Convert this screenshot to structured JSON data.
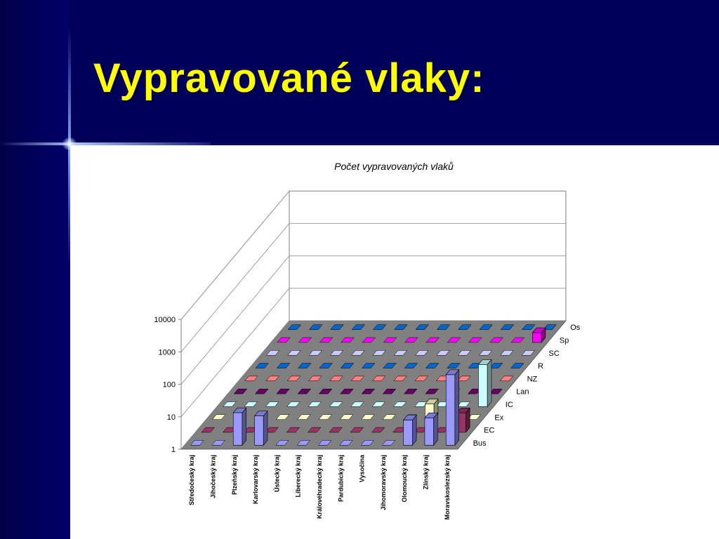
{
  "slide": {
    "title": "Vypravované vlaky:"
  },
  "colors": {
    "background": "#00005a",
    "title": "#ffff00",
    "panel": "#ffffff",
    "floor": "#808080"
  },
  "chart_data": {
    "type": "bar",
    "subtype": "3d-bar-matrix",
    "title": "Počet vypravovaných vlaků",
    "y_scale": "log",
    "ylim": [
      1,
      10000
    ],
    "y_ticks": [
      "1",
      "10",
      "100",
      "1000",
      "10000"
    ],
    "categories": [
      "Středočeský kraj",
      "Jihočeský kraj",
      "Plzeňský kraj",
      "Karlovarský kraj",
      "Ústecký kraj",
      "Liberecký kraj",
      "Královéhradecký kraj",
      "Pardubický kraj",
      "Vysočina",
      "Jihomoravský kraj",
      "Olomoucký kraj",
      "Zlínský kraj",
      "Moravskoslezský kraj"
    ],
    "series": [
      {
        "name": "Bus",
        "color": "#9999ff",
        "values": [
          1,
          1,
          10,
          8,
          1,
          1,
          1,
          1,
          1,
          1,
          6,
          7,
          150
        ]
      },
      {
        "name": "EC",
        "color": "#993366",
        "values": [
          1,
          1,
          1,
          1,
          1,
          1,
          1,
          1,
          1,
          1,
          1,
          1,
          4
        ]
      },
      {
        "name": "Ex",
        "color": "#ffffcc",
        "values": [
          1,
          1,
          1,
          1,
          1,
          1,
          1,
          1,
          1,
          1,
          3,
          1,
          1
        ]
      },
      {
        "name": "IC",
        "color": "#ccffff",
        "values": [
          1,
          1,
          1,
          1,
          1,
          1,
          1,
          1,
          1,
          1,
          1,
          1,
          20
        ]
      },
      {
        "name": "Lan",
        "color": "#660066",
        "values": [
          1,
          1,
          1,
          1,
          1,
          1,
          1,
          1,
          1,
          1,
          1,
          1,
          1
        ]
      },
      {
        "name": "NZ",
        "color": "#ff8080",
        "values": [
          1,
          1,
          1,
          1,
          1,
          1,
          1,
          1,
          1,
          1,
          1,
          1,
          1
        ]
      },
      {
        "name": "R",
        "color": "#0066cc",
        "values": [
          1,
          1,
          1,
          1,
          1,
          1,
          1,
          1,
          1,
          1,
          1,
          1,
          1
        ]
      },
      {
        "name": "SC",
        "color": "#ccccff",
        "values": [
          1,
          1,
          1,
          1,
          1,
          1,
          1,
          1,
          1,
          1,
          1,
          1,
          1
        ]
      },
      {
        "name": "Sp",
        "color": "#ff00ff",
        "values": [
          1,
          1,
          1,
          1,
          1,
          1,
          1,
          1,
          1,
          1,
          1,
          1,
          2
        ]
      },
      {
        "name": "Os",
        "color": "#0066cc",
        "values": [
          1,
          1,
          1,
          1,
          1,
          1,
          1,
          1,
          1,
          1,
          1,
          1,
          1
        ]
      }
    ],
    "legend": "none",
    "grid": true
  }
}
